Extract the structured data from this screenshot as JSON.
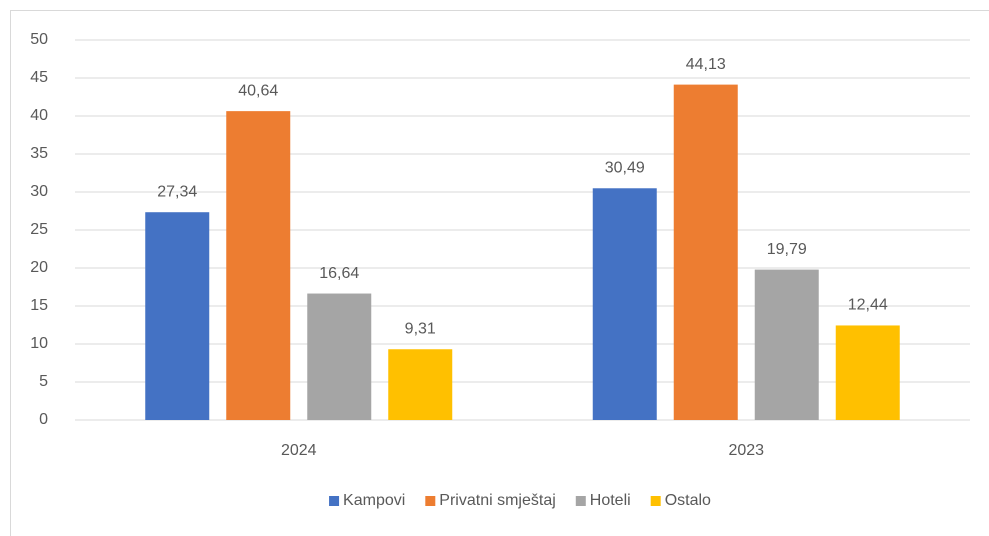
{
  "chart_data": {
    "type": "bar",
    "categories": [
      "2024",
      "2023"
    ],
    "series": [
      {
        "name": "Kampovi",
        "color": "#4472c4",
        "values": [
          27.34,
          30.49
        ],
        "value_labels": [
          "27,34",
          "30,49"
        ]
      },
      {
        "name": "Privatni smještaj",
        "color": "#ed7d31",
        "values": [
          40.64,
          44.13
        ],
        "value_labels": [
          "40,64",
          "44,13"
        ]
      },
      {
        "name": "Hoteli",
        "color": "#a5a5a5",
        "values": [
          16.64,
          19.79
        ],
        "value_labels": [
          "16,64",
          "19,79"
        ]
      },
      {
        "name": "Ostalo",
        "color": "#ffc000",
        "values": [
          9.31,
          12.44
        ],
        "value_labels": [
          "9,31",
          "12,44"
        ]
      }
    ],
    "ylim": [
      0,
      50
    ],
    "yticks": [
      0,
      5,
      10,
      15,
      20,
      25,
      30,
      35,
      40,
      45,
      50
    ],
    "grid": true,
    "legend": "bottom"
  }
}
